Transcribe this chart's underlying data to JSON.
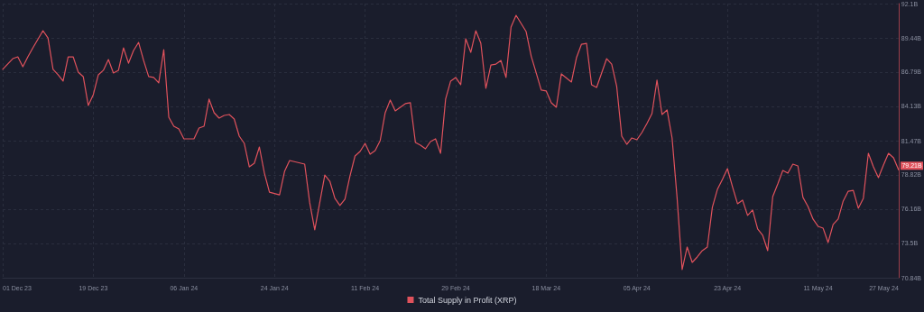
{
  "chart_data": {
    "type": "line",
    "x": [
      "2023-12-01",
      "2023-12-03",
      "2023-12-04",
      "2023-12-05",
      "2023-12-06",
      "2023-12-07",
      "2023-12-09",
      "2023-12-10",
      "2023-12-11",
      "2023-12-12",
      "2023-12-13",
      "2023-12-14",
      "2023-12-15",
      "2023-12-16",
      "2023-12-17",
      "2023-12-18",
      "2023-12-19",
      "2023-12-20",
      "2023-12-21",
      "2023-12-22",
      "2023-12-23",
      "2023-12-24",
      "2023-12-25",
      "2023-12-26",
      "2023-12-27",
      "2023-12-28",
      "2023-12-29",
      "2023-12-30",
      "2023-12-31",
      "2024-01-01",
      "2024-01-02",
      "2024-01-03",
      "2024-01-04",
      "2024-01-05",
      "2024-01-06",
      "2024-01-08",
      "2024-01-09",
      "2024-01-10",
      "2024-01-11",
      "2024-01-12",
      "2024-01-13",
      "2024-01-14",
      "2024-01-15",
      "2024-01-16",
      "2024-01-17",
      "2024-01-18",
      "2024-01-19",
      "2024-01-20",
      "2024-01-21",
      "2024-01-22",
      "2024-01-23",
      "2024-01-25",
      "2024-01-26",
      "2024-01-27",
      "2024-01-30",
      "2024-01-31",
      "2024-02-01",
      "2024-02-03",
      "2024-02-04",
      "2024-02-05",
      "2024-02-06",
      "2024-02-07",
      "2024-02-08",
      "2024-02-09",
      "2024-02-10",
      "2024-02-11",
      "2024-02-12",
      "2024-02-13",
      "2024-02-14",
      "2024-02-15",
      "2024-02-16",
      "2024-02-17",
      "2024-02-19",
      "2024-02-20",
      "2024-02-21",
      "2024-02-22",
      "2024-02-23",
      "2024-02-24",
      "2024-02-25",
      "2024-02-26",
      "2024-02-27",
      "2024-02-28",
      "2024-02-29",
      "2024-03-01",
      "2024-03-02",
      "2024-03-03",
      "2024-03-04",
      "2024-03-05",
      "2024-03-06",
      "2024-03-07",
      "2024-03-08",
      "2024-03-09",
      "2024-03-10",
      "2024-03-11",
      "2024-03-12",
      "2024-03-14",
      "2024-03-15",
      "2024-03-16",
      "2024-03-17",
      "2024-03-18",
      "2024-03-19",
      "2024-03-20",
      "2024-03-21",
      "2024-03-23",
      "2024-03-24",
      "2024-03-25",
      "2024-03-26",
      "2024-03-27",
      "2024-03-28",
      "2024-03-30",
      "2024-03-31",
      "2024-04-01",
      "2024-04-02",
      "2024-04-03",
      "2024-04-04",
      "2024-04-05",
      "2024-04-06",
      "2024-04-07",
      "2024-04-08",
      "2024-04-09",
      "2024-04-10",
      "2024-04-11",
      "2024-04-12",
      "2024-04-13",
      "2024-04-14",
      "2024-04-15",
      "2024-04-16",
      "2024-04-17",
      "2024-04-18",
      "2024-04-19",
      "2024-04-20",
      "2024-04-21",
      "2024-04-22",
      "2024-04-23",
      "2024-04-24",
      "2024-04-25",
      "2024-04-26",
      "2024-04-27",
      "2024-04-28",
      "2024-04-29",
      "2024-04-30",
      "2024-05-01",
      "2024-05-02",
      "2024-05-03",
      "2024-05-04",
      "2024-05-05",
      "2024-05-06",
      "2024-05-07",
      "2024-05-08",
      "2024-05-09",
      "2024-05-10",
      "2024-05-11",
      "2024-05-12",
      "2024-05-13",
      "2024-05-14",
      "2024-05-15",
      "2024-05-16",
      "2024-05-17",
      "2024-05-18",
      "2024-05-19",
      "2024-05-20",
      "2024-05-21",
      "2024-05-22",
      "2024-05-23",
      "2024-05-24",
      "2024-05-25",
      "2024-05-26",
      "2024-05-27"
    ],
    "series": [
      {
        "name": "Total Supply in Profit (XRP)",
        "color": "#e0525c",
        "values": [
          87.0,
          87.83,
          87.97,
          87.2,
          87.97,
          88.67,
          90.0,
          89.44,
          87.0,
          86.58,
          86.09,
          87.97,
          87.97,
          86.79,
          86.44,
          84.2,
          85.04,
          86.58,
          86.93,
          87.76,
          86.72,
          86.93,
          88.67,
          87.48,
          88.46,
          89.09,
          87.69,
          86.44,
          86.37,
          85.95,
          88.53,
          83.29,
          82.59,
          82.38,
          81.61,
          81.61,
          82.45,
          82.59,
          84.69,
          83.64,
          83.22,
          83.43,
          83.5,
          83.15,
          81.82,
          81.26,
          79.44,
          79.72,
          80.98,
          78.95,
          77.48,
          77.27,
          79.09,
          79.93,
          79.65,
          76.65,
          74.55,
          78.81,
          78.32,
          77.0,
          76.44,
          76.93,
          78.74,
          80.28,
          80.63,
          81.26,
          80.42,
          80.7,
          81.47,
          83.64,
          84.62,
          83.78,
          84.34,
          84.41,
          81.33,
          81.12,
          80.84,
          81.4,
          81.61,
          80.49,
          84.69,
          86.09,
          86.37,
          85.81,
          89.37,
          88.32,
          90.0,
          89.02,
          85.53,
          87.34,
          87.41,
          87.69,
          86.37,
          90.28,
          91.19,
          89.93,
          88.04,
          86.72,
          85.39,
          85.32,
          84.41,
          84.06,
          86.65,
          86.02,
          87.9,
          88.95,
          89.02,
          85.81,
          85.6,
          87.83,
          87.41,
          85.67,
          81.82,
          81.19,
          81.68,
          81.54,
          82.1,
          82.8,
          83.57,
          86.16,
          83.5,
          83.85,
          81.68,
          77.0,
          71.47,
          73.22,
          72.03,
          72.45,
          72.94,
          73.22,
          76.3,
          77.69,
          78.46,
          79.3,
          77.9,
          76.58,
          76.86,
          75.67,
          76.09,
          74.62,
          74.13,
          72.94,
          77.13,
          78.11,
          79.16,
          78.95,
          79.65,
          79.51,
          77.07,
          76.37,
          75.39,
          74.83,
          74.69,
          73.57,
          74.97,
          75.39,
          76.79,
          77.55,
          77.62,
          76.23,
          77.0,
          80.49,
          79.44,
          78.6,
          79.58,
          80.49,
          80.14,
          79.21
        ]
      }
    ],
    "xlim": [
      "2023-12-01",
      "2024-05-27"
    ],
    "xticks": [
      {
        "value": "2023-12-01",
        "label": "01 Dec 23"
      },
      {
        "value": "2023-12-19",
        "label": "19 Dec 23"
      },
      {
        "value": "2024-01-06",
        "label": "06 Jan 24"
      },
      {
        "value": "2024-01-24",
        "label": "24 Jan 24"
      },
      {
        "value": "2024-02-11",
        "label": "11 Feb 24"
      },
      {
        "value": "2024-02-29",
        "label": "29 Feb 24"
      },
      {
        "value": "2024-03-18",
        "label": "18 Mar 24"
      },
      {
        "value": "2024-04-05",
        "label": "05 Apr 24"
      },
      {
        "value": "2024-04-23",
        "label": "23 Apr 24"
      },
      {
        "value": "2024-05-11",
        "label": "11 May 24"
      },
      {
        "value": "2024-05-27",
        "label": "27 May 24"
      }
    ],
    "ylim": [
      70.84,
      92.1
    ],
    "yticks": [
      {
        "value": 70.84,
        "label": "70.84B"
      },
      {
        "value": 73.5,
        "label": "73.5B"
      },
      {
        "value": 76.16,
        "label": "76.16B"
      },
      {
        "value": 78.82,
        "label": "78.82B"
      },
      {
        "value": 81.47,
        "label": "81.47B"
      },
      {
        "value": 84.13,
        "label": "84.13B"
      },
      {
        "value": 86.79,
        "label": "86.79B"
      },
      {
        "value": 89.44,
        "label": "89.44B"
      },
      {
        "value": 92.1,
        "label": "92.1B"
      }
    ],
    "annotations": [
      {
        "text": "79.21B",
        "x": "2024-05-27",
        "y": 79.21
      }
    ],
    "grid": true,
    "legend": "bottom",
    "marker": "none",
    "line_style": "solid"
  }
}
